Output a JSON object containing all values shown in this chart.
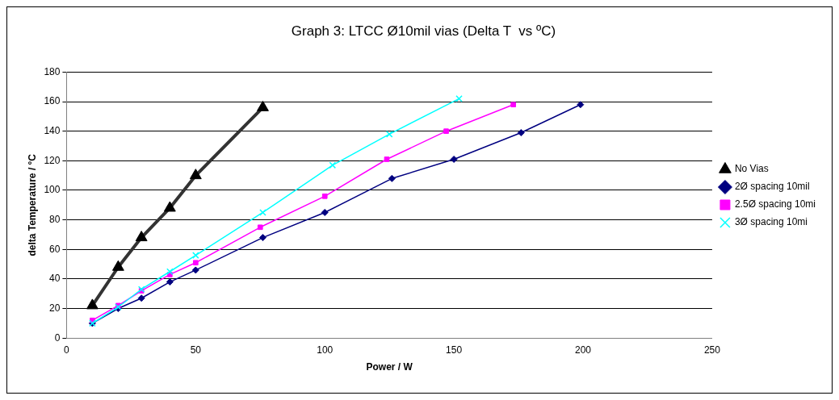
{
  "chart_data": {
    "type": "line",
    "title": "Graph 3: LTCC Ø10mil vias (Delta T  vs ºC)",
    "xlabel": "Power / W",
    "ylabel": "delta Temperature / °C",
    "xlim": [
      0,
      250
    ],
    "xticks": [
      0,
      50,
      100,
      150,
      200,
      250
    ],
    "ylim": [
      0,
      180
    ],
    "yticks": [
      0,
      20,
      40,
      60,
      80,
      100,
      120,
      140,
      160,
      180
    ],
    "grid": "y",
    "legend": "right",
    "series": [
      {
        "name": "No Vias",
        "color": "#333333",
        "marker": "triangle",
        "x": [
          10,
          20,
          29,
          40,
          50,
          76
        ],
        "values": [
          22,
          48,
          68,
          88,
          110,
          156
        ]
      },
      {
        "name": "2Ø spacing 10mil",
        "color": "#000080",
        "marker": "diamond",
        "x": [
          10,
          20,
          29,
          40,
          50,
          76,
          100,
          126,
          150,
          176,
          199
        ],
        "values": [
          10,
          20,
          27,
          38,
          46,
          68,
          85,
          108,
          121,
          139,
          158
        ]
      },
      {
        "name": "2.5Ø spacing 10mi",
        "color": "#ff00ff",
        "marker": "square",
        "x": [
          10,
          20,
          29,
          40,
          50,
          75,
          100,
          124,
          147,
          173
        ],
        "values": [
          12,
          22,
          32,
          43,
          51,
          75,
          96,
          121,
          140,
          158
        ]
      },
      {
        "name": "3Ø spacing 10mi",
        "color": "#00ffff",
        "marker": "cross",
        "x": [
          10,
          20,
          29,
          40,
          50,
          76,
          103,
          125,
          152
        ],
        "values": [
          10,
          21,
          33,
          45,
          56,
          85,
          117,
          138,
          162
        ]
      }
    ]
  }
}
